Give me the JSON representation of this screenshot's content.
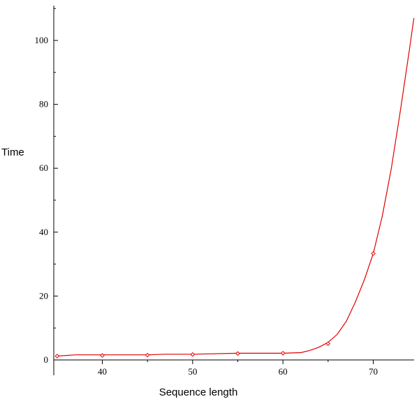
{
  "chart_data": {
    "type": "line",
    "title": "",
    "xlabel": "Sequence length",
    "ylabel": "Time",
    "xlim": [
      35,
      74.5
    ],
    "ylim": [
      0,
      110
    ],
    "x_ticks": [
      40,
      50,
      60,
      70
    ],
    "y_ticks": [
      0,
      20,
      40,
      60,
      80,
      100
    ],
    "grid": false,
    "legend": "none",
    "series": [
      {
        "color": "#e00000",
        "markers": {
          "shape": "diamond",
          "x": [
            35,
            40,
            45,
            50,
            55,
            60,
            65,
            70
          ],
          "y": [
            1.2,
            1.4,
            1.5,
            1.7,
            2.0,
            2.1,
            5.1,
            33.3
          ]
        },
        "curve": {
          "x": [
            35,
            37,
            40,
            45,
            47,
            50,
            55,
            60,
            62,
            63,
            64,
            65,
            66,
            67,
            68,
            69,
            70,
            71,
            72,
            73,
            74,
            74.5
          ],
          "y": [
            1.2,
            1.6,
            1.6,
            1.6,
            1.8,
            1.8,
            2.1,
            2.1,
            2.3,
            3.0,
            4.0,
            5.5,
            8.0,
            12.0,
            18.0,
            25.0,
            33.3,
            45.0,
            60.0,
            78.0,
            97.0,
            107.0
          ]
        }
      }
    ]
  }
}
